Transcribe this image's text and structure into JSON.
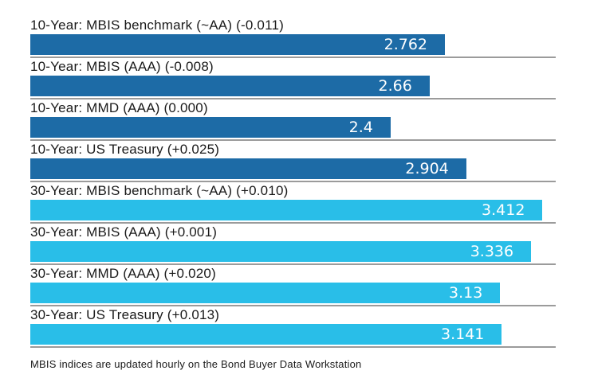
{
  "chart_data": {
    "type": "bar",
    "orientation": "horizontal",
    "title": "",
    "xlabel": "",
    "ylabel": "",
    "xlim": [
      0,
      3.5
    ],
    "grid": false,
    "legend": "none",
    "bars": [
      {
        "label": "10-Year: MBIS benchmark (~AA) (-0.011)",
        "value": 2.762,
        "value_label": "2.762",
        "change": "-0.011",
        "group": "10-Year",
        "color": "#1d6ba6"
      },
      {
        "label": "10-Year: MBIS (AAA) (-0.008)",
        "value": 2.66,
        "value_label": "2.66",
        "change": "-0.008",
        "group": "10-Year",
        "color": "#1d6ba6"
      },
      {
        "label": "10-Year: MMD (AAA) (0.000)",
        "value": 2.4,
        "value_label": "2.4",
        "change": "0.000",
        "group": "10-Year",
        "color": "#1d6ba6"
      },
      {
        "label": "10-Year: US Treasury (+0.025)",
        "value": 2.904,
        "value_label": "2.904",
        "change": "+0.025",
        "group": "10-Year",
        "color": "#1d6ba6"
      },
      {
        "label": "30-Year: MBIS benchmark (~AA) (+0.010)",
        "value": 3.412,
        "value_label": "3.412",
        "change": "+0.010",
        "group": "30-Year",
        "color": "#29bee8"
      },
      {
        "label": "30-Year: MBIS (AAA) (+0.001)",
        "value": 3.336,
        "value_label": "3.336",
        "change": "+0.001",
        "group": "30-Year",
        "color": "#29bee8"
      },
      {
        "label": "30-Year: MMD (AAA) (+0.020)",
        "value": 3.13,
        "value_label": "3.13",
        "change": "+0.020",
        "group": "30-Year",
        "color": "#29bee8"
      },
      {
        "label": "30-Year: US Treasury (+0.013)",
        "value": 3.141,
        "value_label": "3.141",
        "change": "+0.013",
        "group": "30-Year",
        "color": "#29bee8"
      }
    ],
    "footnote": "MBIS indices are updated hourly on the Bond Buyer Data Workstation"
  },
  "colors": {
    "ten_year_bar": "#1d6ba6",
    "thirty_year_bar": "#29bee8",
    "separator": "#9b9b9b",
    "value_text": "#ffffff",
    "label_text": "#1a1a1a",
    "background": "#ffffff"
  }
}
